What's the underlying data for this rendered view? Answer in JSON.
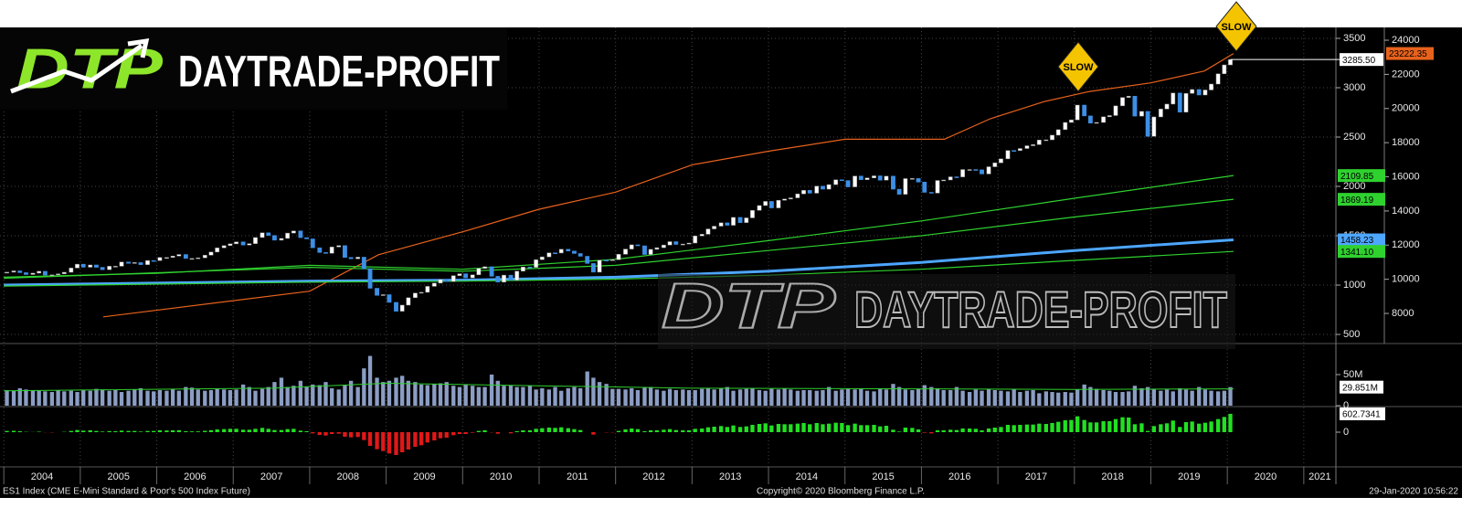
{
  "chart_data": {
    "type": "candlestick",
    "branding": {
      "logo_mark": "DTP",
      "logo_text": "DAYTRADE-PROFIT",
      "watermark_mark": "DTP",
      "watermark_text": "DAYTRADE-PROFIT"
    },
    "annotations": [
      "SLOW",
      "SLOW"
    ],
    "footer": {
      "left": "ES1 Index (CME E-Mini Standard & Poor's 500 Index Future)",
      "center": "Copyright© 2020 Bloomberg Finance L.P.",
      "right": "29-Jan-2020 10:56:22"
    },
    "xlim": [
      2003.95,
      2021.42
    ],
    "xticks": [
      2004,
      2005,
      2006,
      2007,
      2008,
      2009,
      2010,
      2011,
      2012,
      2013,
      2014,
      2015,
      2016,
      2017,
      2018,
      2019,
      2020,
      2021
    ],
    "ylim": [
      417,
      3611
    ],
    "yticks": [
      500,
      1000,
      1500,
      2000,
      2500,
      3000,
      3500
    ],
    "y2lim": [
      6290,
      24750
    ],
    "y2ticks": [
      8000,
      10000,
      12000,
      14000,
      16000,
      18000,
      20000,
      22000,
      24000
    ],
    "grid": true,
    "up_color": "#ffffff",
    "down_color": "#3d8fe6",
    "last_label": "3285.50",
    "x": [
      2004.04,
      2004.13,
      2004.21,
      2004.29,
      2004.38,
      2004.46,
      2004.54,
      2004.63,
      2004.71,
      2004.79,
      2004.88,
      2004.96,
      2005.04,
      2005.13,
      2005.21,
      2005.29,
      2005.38,
      2005.46,
      2005.54,
      2005.63,
      2005.71,
      2005.79,
      2005.88,
      2005.96,
      2006.04,
      2006.13,
      2006.21,
      2006.29,
      2006.38,
      2006.46,
      2006.54,
      2006.63,
      2006.71,
      2006.79,
      2006.88,
      2006.96,
      2007.04,
      2007.13,
      2007.21,
      2007.29,
      2007.38,
      2007.46,
      2007.54,
      2007.63,
      2007.71,
      2007.79,
      2007.88,
      2007.96,
      2008.04,
      2008.13,
      2008.21,
      2008.29,
      2008.38,
      2008.46,
      2008.54,
      2008.63,
      2008.71,
      2008.79,
      2008.88,
      2008.96,
      2009.04,
      2009.13,
      2009.21,
      2009.29,
      2009.38,
      2009.46,
      2009.54,
      2009.63,
      2009.71,
      2009.79,
      2009.88,
      2009.96,
      2010.04,
      2010.13,
      2010.21,
      2010.29,
      2010.38,
      2010.46,
      2010.54,
      2010.63,
      2010.71,
      2010.79,
      2010.88,
      2010.96,
      2011.04,
      2011.13,
      2011.21,
      2011.29,
      2011.38,
      2011.46,
      2011.54,
      2011.63,
      2011.71,
      2011.79,
      2011.88,
      2011.96,
      2012.04,
      2012.13,
      2012.21,
      2012.29,
      2012.38,
      2012.46,
      2012.54,
      2012.63,
      2012.71,
      2012.79,
      2012.88,
      2012.96,
      2013.04,
      2013.13,
      2013.21,
      2013.29,
      2013.38,
      2013.46,
      2013.54,
      2013.63,
      2013.71,
      2013.79,
      2013.88,
      2013.96,
      2014.04,
      2014.13,
      2014.21,
      2014.29,
      2014.38,
      2014.46,
      2014.54,
      2014.63,
      2014.71,
      2014.79,
      2014.88,
      2014.96,
      2015.04,
      2015.13,
      2015.21,
      2015.29,
      2015.38,
      2015.46,
      2015.54,
      2015.63,
      2015.71,
      2015.79,
      2015.88,
      2015.96,
      2016.04,
      2016.13,
      2016.21,
      2016.29,
      2016.38,
      2016.46,
      2016.54,
      2016.63,
      2016.71,
      2016.79,
      2016.88,
      2016.96,
      2017.04,
      2017.13,
      2017.21,
      2017.29,
      2017.38,
      2017.46,
      2017.54,
      2017.63,
      2017.71,
      2017.79,
      2017.88,
      2017.96,
      2018.04,
      2018.13,
      2018.21,
      2018.29,
      2018.38,
      2018.46,
      2018.54,
      2018.63,
      2018.71,
      2018.79,
      2018.88,
      2018.96,
      2019.04,
      2019.13,
      2019.21,
      2019.29,
      2019.38,
      2019.46,
      2019.54,
      2019.63,
      2019.71,
      2019.79,
      2019.88,
      2019.96,
      2020.04
    ],
    "values": [
      1131,
      1144,
      1126,
      1107,
      1121,
      1140,
      1101,
      1104,
      1114,
      1130,
      1173,
      1212,
      1181,
      1204,
      1180,
      1156,
      1191,
      1191,
      1234,
      1220,
      1228,
      1207,
      1249,
      1248,
      1280,
      1280,
      1294,
      1310,
      1270,
      1270,
      1276,
      1303,
      1335,
      1377,
      1400,
      1418,
      1438,
      1406,
      1420,
      1482,
      1530,
      1503,
      1455,
      1473,
      1527,
      1549,
      1481,
      1468,
      1378,
      1330,
      1322,
      1386,
      1400,
      1280,
      1267,
      1283,
      1166,
      968,
      896,
      903,
      825,
      735,
      797,
      872,
      919,
      927,
      987,
      1020,
      1057,
      1036,
      1096,
      1115,
      1073,
      1104,
      1169,
      1186,
      1089,
      1030,
      1101,
      1049,
      1141,
      1183,
      1180,
      1257,
      1286,
      1327,
      1325,
      1363,
      1345,
      1320,
      1292,
      1219,
      1131,
      1253,
      1247,
      1257,
      1312,
      1365,
      1408,
      1398,
      1310,
      1362,
      1379,
      1406,
      1440,
      1412,
      1416,
      1426,
      1498,
      1515,
      1569,
      1597,
      1631,
      1606,
      1686,
      1633,
      1681,
      1757,
      1806,
      1848,
      1782,
      1859,
      1872,
      1884,
      1924,
      1960,
      1931,
      2003,
      1972,
      2018,
      2067,
      2059,
      1995,
      2105,
      2068,
      2086,
      2107,
      2063,
      2104,
      1972,
      1920,
      2079,
      2080,
      2044,
      1940,
      1932,
      2060,
      2065,
      2097,
      2096,
      2171,
      2171,
      2168,
      2126,
      2199,
      2239,
      2279,
      2364,
      2363,
      2384,
      2412,
      2423,
      2470,
      2472,
      2519,
      2575,
      2648,
      2674,
      2824,
      2714,
      2641,
      2648,
      2705,
      2718,
      2816,
      2901,
      2914,
      2712,
      2760,
      2507,
      2704,
      2784,
      2834,
      2946,
      2752,
      2942,
      2982,
      2926,
      2977,
      3037,
      3141,
      3231,
      3285.5
    ],
    "lines": [
      {
        "color": "#e8621c",
        "axis": "y2",
        "label": "23222.35",
        "x": [
          2005.3,
          2008.0,
          2008.9,
          2010.0,
          2011.0,
          2012.0,
          2013.0,
          2014.0,
          2015.0,
          2016.3,
          2016.9,
          2017.6,
          2018.2,
          2019.0,
          2019.7,
          2020.08
        ],
        "values": [
          7800,
          9300,
          11440,
          12780,
          14100,
          15100,
          16700,
          17500,
          18200,
          18200,
          19400,
          20400,
          21000,
          21500,
          22200,
          23222.35
        ]
      },
      {
        "color": "#2fd12f",
        "axis": "y",
        "label": "2109.85",
        "x": [
          2004.0,
          2006.0,
          2008.0,
          2010.0,
          2012.0,
          2014.0,
          2016.0,
          2018.0,
          2020.08
        ],
        "values": [
          1080,
          1120,
          1200,
          1160,
          1260,
          1450,
          1650,
          1880,
          2109.85
        ]
      },
      {
        "color": "#2fd12f",
        "axis": "y",
        "label": "1869.19",
        "x": [
          2004.0,
          2008.0,
          2010.0,
          2012.0,
          2014.0,
          2016.0,
          2018.0,
          2020.08
        ],
        "values": [
          1070,
          1180,
          1140,
          1200,
          1350,
          1500,
          1690,
          1869.19
        ]
      },
      {
        "color": "#4da6ff",
        "axis": "y",
        "label": "1458.23",
        "x": [
          2004.0,
          2008.0,
          2010.0,
          2012.0,
          2014.0,
          2016.0,
          2018.0,
          2020.08
        ],
        "values": [
          1000,
          1040,
          1050,
          1080,
          1140,
          1230,
          1350,
          1458.23
        ]
      },
      {
        "color": "#2fd12f",
        "axis": "y",
        "label": "1341.10",
        "x": [
          2004.0,
          2008.0,
          2010.0,
          2012.0,
          2014.0,
          2016.0,
          2018.0,
          2020.08
        ],
        "values": [
          990,
          1030,
          1040,
          1060,
          1100,
          1160,
          1250,
          1341.1
        ]
      }
    ],
    "volume": {
      "color": "#8b9dc3",
      "ylim": [
        0,
        97
      ],
      "yticks": [
        0,
        {
          "value": 50,
          "label": "50M"
        }
      ],
      "last_label": "29.851M",
      "values": [
        25,
        24,
        28,
        26,
        25,
        24,
        23,
        22,
        25,
        23,
        24,
        22,
        25,
        24,
        27,
        26,
        24,
        25,
        22,
        24,
        26,
        28,
        24,
        23,
        25,
        24,
        27,
        24,
        30,
        29,
        26,
        24,
        25,
        27,
        26,
        25,
        26,
        34,
        30,
        24,
        27,
        30,
        38,
        45,
        30,
        32,
        40,
        30,
        34,
        33,
        38,
        28,
        26,
        33,
        40,
        30,
        60,
        80,
        45,
        38,
        40,
        45,
        48,
        40,
        38,
        34,
        33,
        35,
        36,
        38,
        32,
        30,
        34,
        32,
        30,
        30,
        50,
        40,
        32,
        33,
        30,
        30,
        32,
        26,
        28,
        26,
        30,
        24,
        28,
        30,
        28,
        55,
        45,
        38,
        35,
        27,
        27,
        26,
        28,
        25,
        30,
        30,
        26,
        24,
        27,
        25,
        26,
        25,
        25,
        27,
        28,
        26,
        28,
        30,
        24,
        26,
        27,
        28,
        25,
        24,
        27,
        26,
        28,
        26,
        24,
        25,
        25,
        24,
        25,
        30,
        24,
        26,
        27,
        26,
        27,
        24,
        23,
        27,
        26,
        35,
        30,
        26,
        25,
        27,
        33,
        30,
        28,
        25,
        25,
        30,
        24,
        22,
        26,
        24,
        27,
        25,
        24,
        23,
        26,
        22,
        24,
        25,
        20,
        23,
        22,
        21,
        22,
        21,
        26,
        34,
        30,
        27,
        25,
        24,
        22,
        22,
        23,
        32,
        28,
        30,
        27,
        24,
        26,
        23,
        28,
        26,
        24,
        30,
        26,
        24,
        23,
        24,
        29.851
      ],
      "ma": {
        "color": "#2fd12f",
        "x": [
          2004.0,
          2007.5,
          2009.0,
          2011.0,
          2013.0,
          2016.0,
          2018.0,
          2020.08
        ],
        "values": [
          24,
          28,
          36,
          32,
          28,
          27,
          26,
          27
        ]
      }
    },
    "momentum": {
      "up_color": "#22e022",
      "down_color": "#e01818",
      "ylim": [
        -1110,
        780
      ],
      "yticks": [
        0
      ],
      "last_label": "602.7341",
      "values": [
        40,
        45,
        30,
        10,
        5,
        15,
        -5,
        -10,
        0,
        10,
        40,
        70,
        50,
        60,
        40,
        20,
        35,
        30,
        50,
        40,
        40,
        20,
        40,
        40,
        60,
        55,
        60,
        65,
        30,
        25,
        25,
        45,
        65,
        90,
        100,
        110,
        110,
        80,
        80,
        110,
        140,
        110,
        70,
        70,
        100,
        110,
        50,
        30,
        -40,
        -90,
        -110,
        -60,
        -50,
        -150,
        -170,
        -160,
        -260,
        -450,
        -560,
        -620,
        -700,
        -750,
        -660,
        -570,
        -480,
        -430,
        -340,
        -270,
        -200,
        -180,
        -100,
        -60,
        -60,
        -20,
        40,
        60,
        -10,
        -50,
        0,
        -40,
        30,
        60,
        60,
        110,
        130,
        150,
        140,
        160,
        130,
        100,
        70,
        0,
        -80,
        0,
        -10,
        -10,
        40,
        90,
        120,
        100,
        30,
        60,
        60,
        80,
        100,
        70,
        60,
        60,
        110,
        120,
        160,
        180,
        200,
        170,
        220,
        170,
        190,
        240,
        270,
        290,
        220,
        270,
        260,
        260,
        280,
        300,
        260,
        300,
        260,
        280,
        310,
        300,
        230,
        280,
        230,
        230,
        240,
        190,
        210,
        80,
        20,
        150,
        140,
        90,
        -20,
        -40,
        60,
        60,
        80,
        70,
        120,
        120,
        110,
        60,
        120,
        150,
        170,
        240,
        230,
        240,
        250,
        250,
        280,
        270,
        300,
        340,
        390,
        400,
        520,
        400,
        320,
        320,
        360,
        360,
        430,
        490,
        480,
        260,
        290,
        40,
        200,
        260,
        290,
        380,
        170,
        330,
        350,
        280,
        310,
        350,
        430,
        500,
        602.7341
      ]
    }
  }
}
